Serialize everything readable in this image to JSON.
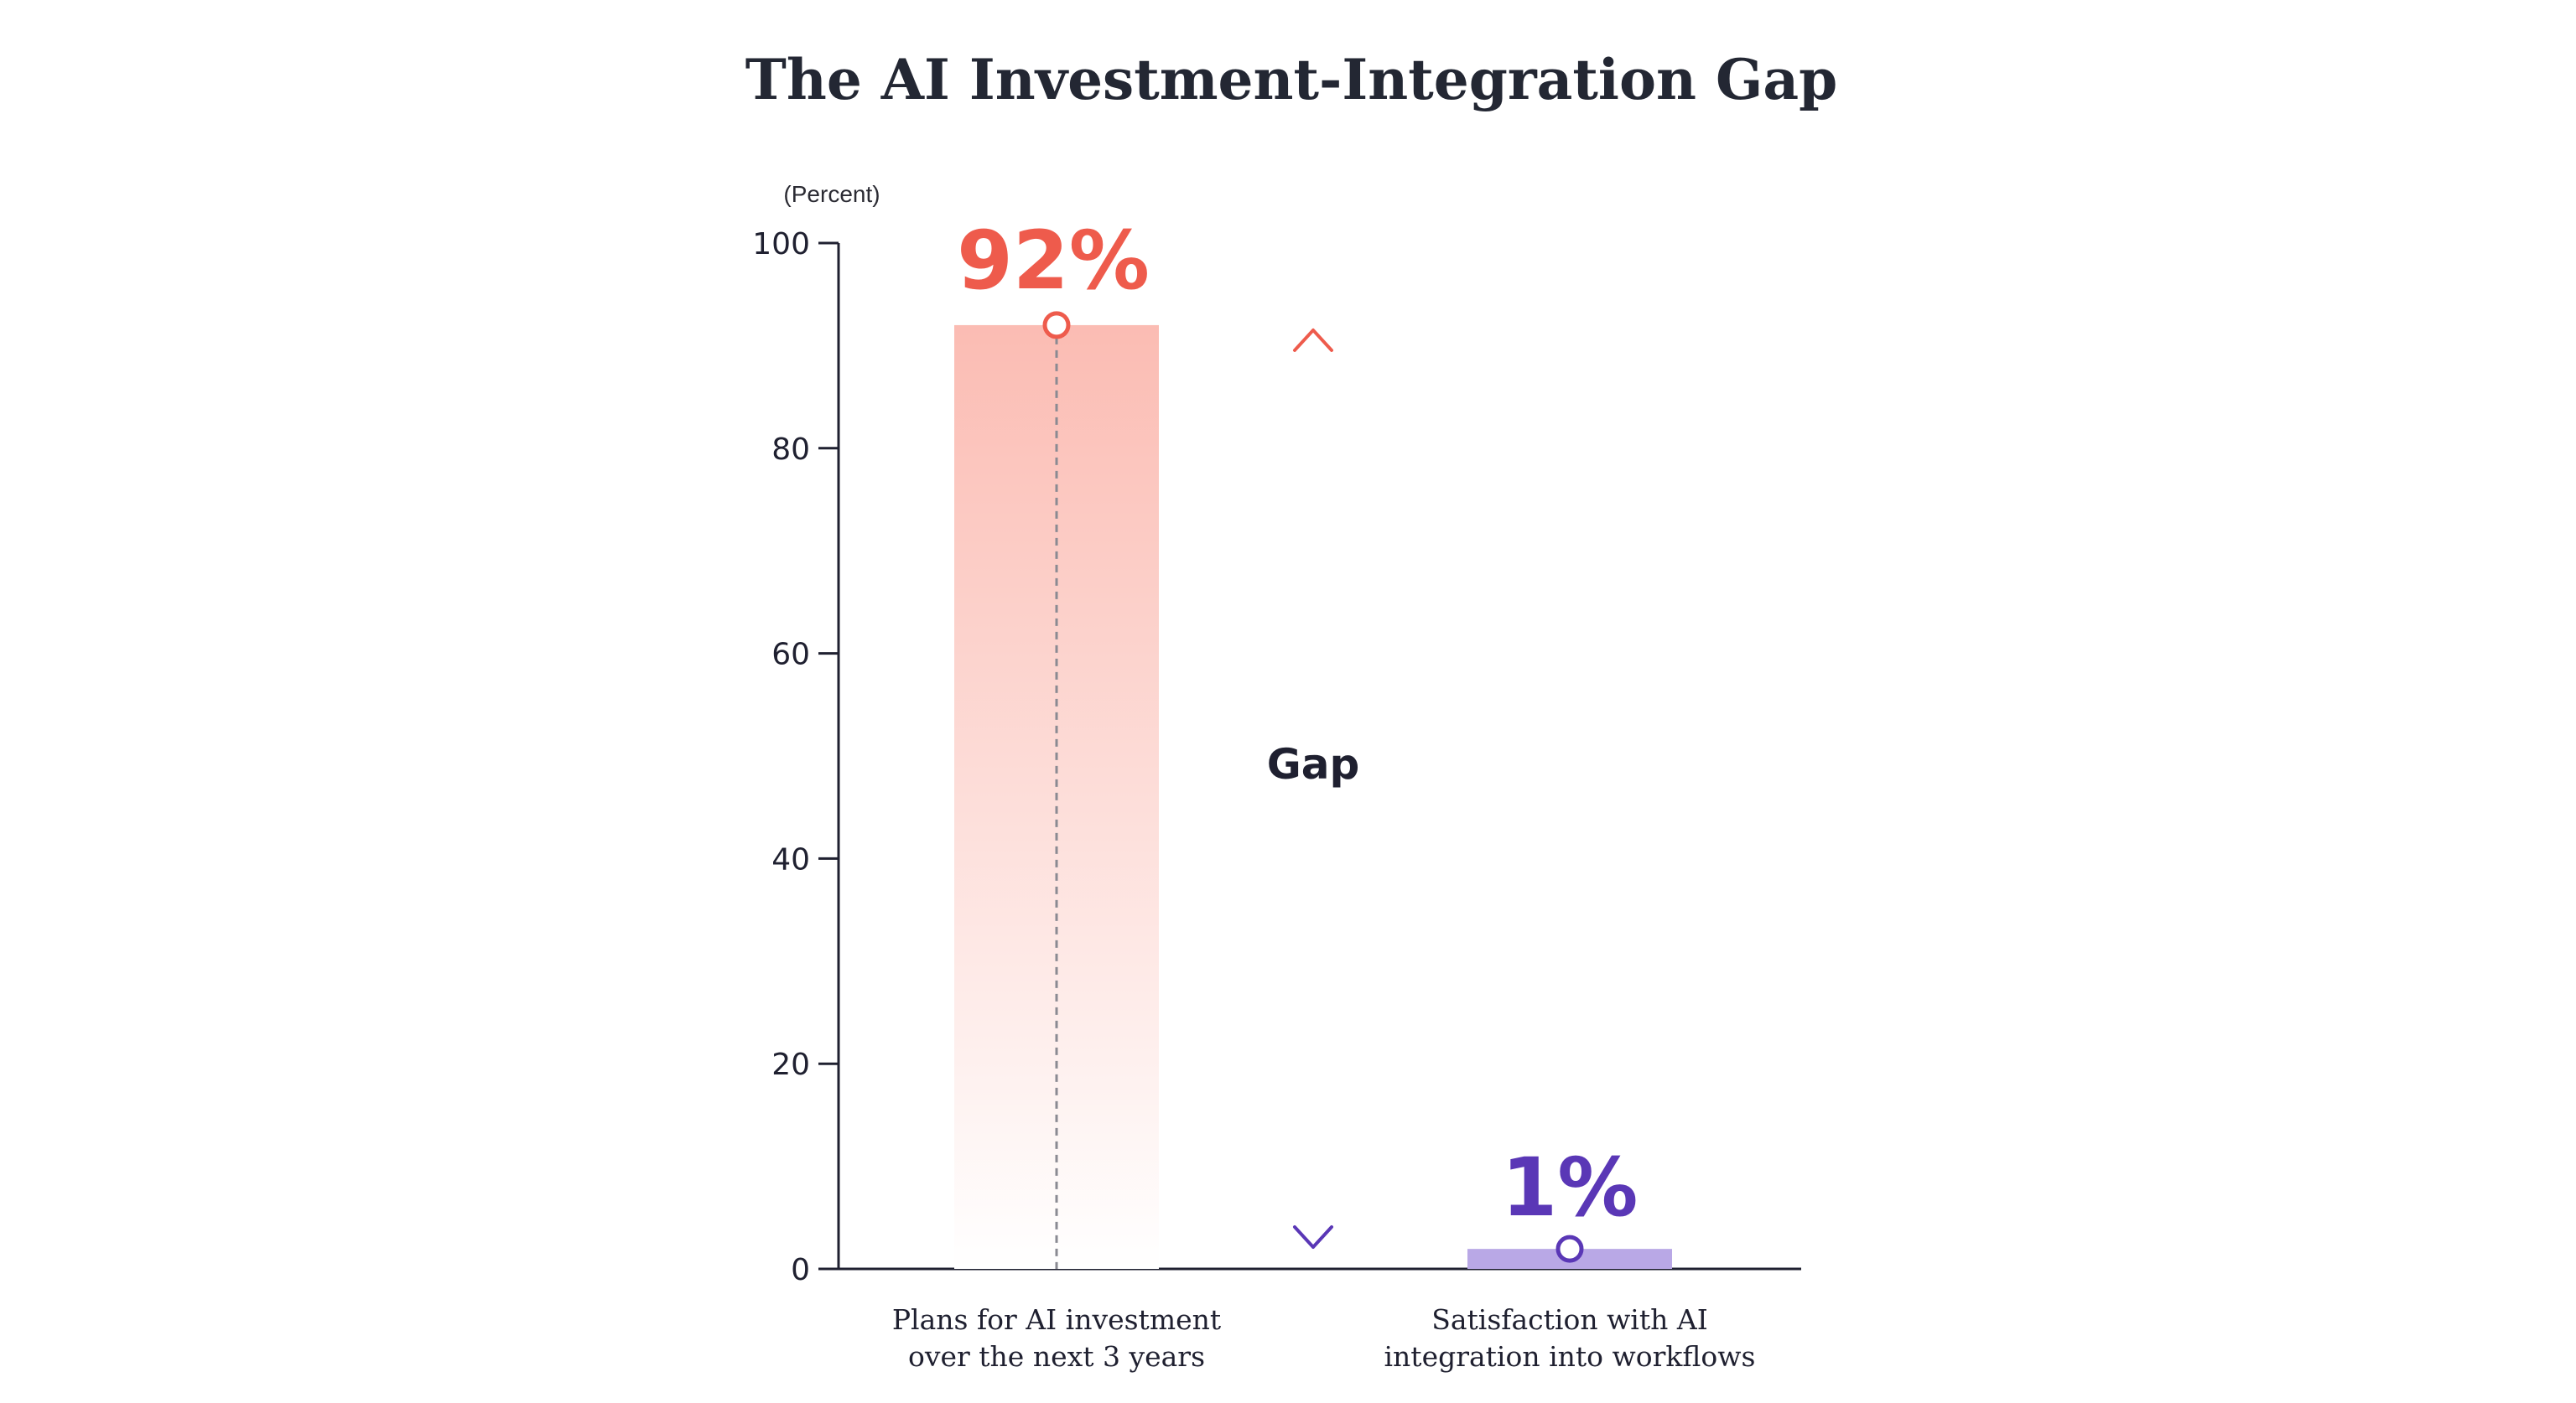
{
  "chart_data": {
    "type": "bar",
    "title": "The AI Investment-Integration Gap",
    "unit_label": "(Percent)",
    "ylim": [
      0,
      100
    ],
    "yticks": [
      0,
      20,
      40,
      60,
      80,
      100
    ],
    "categories": [
      [
        "Plans for AI investment",
        "over the next 3 years"
      ],
      [
        "Satisfaction with AI",
        "integration into workflows"
      ]
    ],
    "values": [
      92,
      1
    ],
    "value_labels": [
      "92%",
      "1%"
    ],
    "annotation": "Gap",
    "grid": false,
    "colors": {
      "bar1_top": "#fbbcb3",
      "bar1_bottom": "#ffffff",
      "bar1_accent": "#ee5b4c",
      "bar2_fill": "#b9a8e6",
      "bar2_accent": "#5a37b6",
      "axis": "#1f2030",
      "title": "#232733"
    }
  }
}
